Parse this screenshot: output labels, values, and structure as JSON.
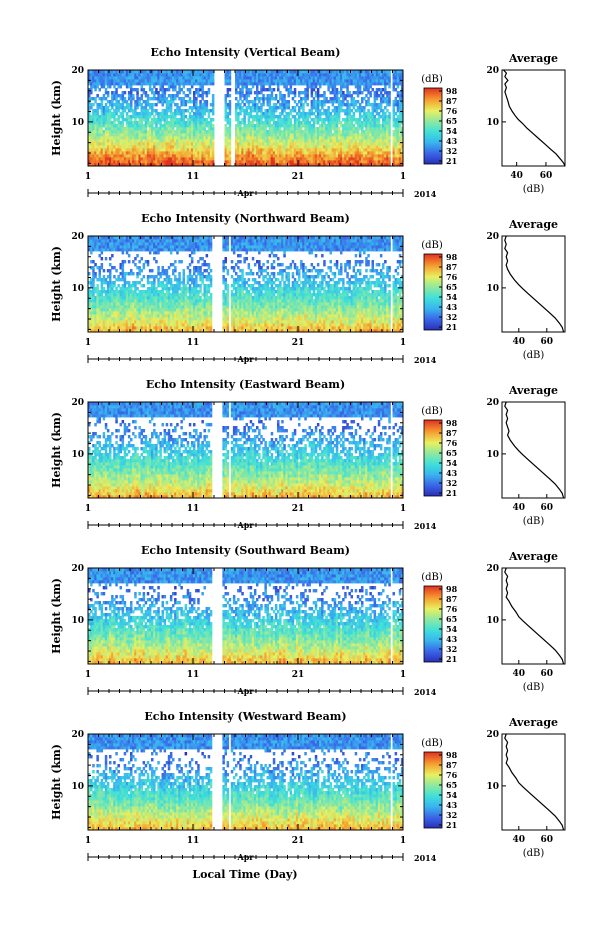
{
  "figure": {
    "bottom_xlabel": "Local Time (Day)"
  },
  "chart_data": [
    {
      "type": "heatmap",
      "title": "Echo Intensity (Vertical Beam)",
      "ylabel": "Height (km)",
      "ytick_labels": [
        "10",
        "20"
      ],
      "xtick_labels": [
        "1",
        "11",
        "21",
        "1"
      ],
      "x_ticks_days": [
        1,
        11,
        21,
        31
      ],
      "xlim_days": [
        1,
        31
      ],
      "ylim_km": [
        1.5,
        20
      ],
      "month_label": "Apr",
      "year_label": "2014",
      "colorbar": {
        "unit": "(dB)",
        "tick_labels": [
          "98",
          "87",
          "76",
          "65",
          "54",
          "43",
          "32",
          "21"
        ],
        "range": [
          21,
          98
        ]
      },
      "data_gaps_days": [
        [
          13.0,
          14.0
        ],
        [
          14.6,
          14.9
        ],
        [
          29.8,
          30.0
        ]
      ],
      "average_profile": {
        "title": "Average",
        "xlabel": "(dB)",
        "xtick_labels": [
          "40",
          "60"
        ],
        "xlim": [
          30,
          73
        ],
        "ylim": [
          1.5,
          20
        ],
        "ytick_labels": [
          "10",
          "20"
        ],
        "points": [
          [
            31,
            20
          ],
          [
            33,
            19.4
          ],
          [
            32,
            18.7
          ],
          [
            34,
            18
          ],
          [
            32,
            17.3
          ],
          [
            33,
            16.6
          ],
          [
            32,
            15.8
          ],
          [
            33,
            14.9
          ],
          [
            34,
            14
          ],
          [
            35,
            13
          ],
          [
            37,
            12
          ],
          [
            39,
            11.2
          ],
          [
            41,
            10.5
          ],
          [
            44,
            9.7
          ],
          [
            47,
            8.8
          ],
          [
            51,
            7.8
          ],
          [
            55,
            6.8
          ],
          [
            59,
            5.8
          ],
          [
            63,
            4.8
          ],
          [
            67,
            3.8
          ],
          [
            70,
            2.8
          ],
          [
            72,
            2.1
          ],
          [
            73,
            1.5
          ]
        ]
      }
    },
    {
      "type": "heatmap",
      "title": "Echo Intensity (Northward Beam)",
      "ylabel": "Height (km)",
      "ytick_labels": [
        "10",
        "20"
      ],
      "xtick_labels": [
        "1",
        "11",
        "21",
        "1"
      ],
      "x_ticks_days": [
        1,
        11,
        21,
        31
      ],
      "xlim_days": [
        1,
        31
      ],
      "ylim_km": [
        1.5,
        20
      ],
      "month_label": "Apr",
      "year_label": "2014",
      "colorbar": {
        "unit": "(dB)",
        "tick_labels": [
          "98",
          "87",
          "76",
          "65",
          "54",
          "43",
          "32",
          "21"
        ],
        "range": [
          21,
          98
        ]
      },
      "data_gaps_days": [
        [
          12.9,
          13.7
        ],
        [
          14.4,
          14.6
        ],
        [
          29.8,
          30.0
        ]
      ],
      "average_profile": {
        "title": "Average",
        "xlabel": "(dB)",
        "xtick_labels": [
          "40",
          "60"
        ],
        "xlim": [
          28,
          73
        ],
        "ylim": [
          1.5,
          20
        ],
        "ytick_labels": [
          "10",
          "20"
        ],
        "points": [
          [
            31,
            20
          ],
          [
            30,
            19.2
          ],
          [
            31,
            18.4
          ],
          [
            30,
            17.6
          ],
          [
            32,
            16.8
          ],
          [
            31,
            16
          ],
          [
            32,
            15.2
          ],
          [
            31,
            14.4
          ],
          [
            32,
            13.6
          ],
          [
            34,
            12.6
          ],
          [
            37,
            11.5
          ],
          [
            40,
            10.6
          ],
          [
            43,
            9.8
          ],
          [
            47,
            8.8
          ],
          [
            52,
            7.6
          ],
          [
            57,
            6.4
          ],
          [
            62,
            5.2
          ],
          [
            66,
            4.2
          ],
          [
            69,
            3.2
          ],
          [
            71,
            2.4
          ],
          [
            72,
            1.5
          ]
        ]
      }
    },
    {
      "type": "heatmap",
      "title": "Echo Intensity (Eastward Beam)",
      "ylabel": "Height (km)",
      "ytick_labels": [
        "10",
        "20"
      ],
      "xtick_labels": [
        "1",
        "11",
        "21",
        "1"
      ],
      "x_ticks_days": [
        1,
        11,
        21,
        31
      ],
      "xlim_days": [
        1,
        31
      ],
      "ylim_km": [
        1.5,
        20
      ],
      "month_label": "Apr",
      "year_label": "2014",
      "colorbar": {
        "unit": "(dB)",
        "tick_labels": [
          "98",
          "87",
          "76",
          "65",
          "54",
          "43",
          "32",
          "21"
        ],
        "range": [
          21,
          98
        ]
      },
      "data_gaps_days": [
        [
          12.9,
          13.7
        ],
        [
          14.4,
          14.6
        ],
        [
          29.8,
          30.0
        ]
      ],
      "average_profile": {
        "title": "Average",
        "xlabel": "(dB)",
        "xtick_labels": [
          "40",
          "60"
        ],
        "xlim": [
          28,
          73
        ],
        "ylim": [
          1.5,
          20
        ],
        "ytick_labels": [
          "10",
          "20"
        ],
        "points": [
          [
            31,
            20
          ],
          [
            30,
            19.2
          ],
          [
            32,
            18.4
          ],
          [
            31,
            17.6
          ],
          [
            32,
            16.8
          ],
          [
            31,
            16
          ],
          [
            32,
            15.2
          ],
          [
            33,
            14.4
          ],
          [
            32,
            13.6
          ],
          [
            34,
            12.6
          ],
          [
            37,
            11.5
          ],
          [
            40,
            10.6
          ],
          [
            43,
            9.8
          ],
          [
            47,
            8.8
          ],
          [
            52,
            7.6
          ],
          [
            57,
            6.4
          ],
          [
            62,
            5.2
          ],
          [
            66,
            4.2
          ],
          [
            69,
            3.2
          ],
          [
            71,
            2.4
          ],
          [
            72,
            1.5
          ]
        ]
      }
    },
    {
      "type": "heatmap",
      "title": "Echo Intensity (Southward Beam)",
      "ylabel": "Height (km)",
      "ytick_labels": [
        "10",
        "20"
      ],
      "xtick_labels": [
        "1",
        "11",
        "21",
        "1"
      ],
      "x_ticks_days": [
        1,
        11,
        21,
        31
      ],
      "xlim_days": [
        1,
        31
      ],
      "ylim_km": [
        1.5,
        20
      ],
      "month_label": "Apr",
      "year_label": "2014",
      "colorbar": {
        "unit": "(dB)",
        "tick_labels": [
          "98",
          "87",
          "76",
          "65",
          "54",
          "43",
          "32",
          "21"
        ],
        "range": [
          21,
          98
        ]
      },
      "data_gaps_days": [
        [
          12.9,
          13.7
        ],
        [
          29.8,
          30.0
        ]
      ],
      "average_profile": {
        "title": "Average",
        "xlabel": "(dB)",
        "xtick_labels": [
          "40",
          "60"
        ],
        "xlim": [
          28,
          73
        ],
        "ylim": [
          1.5,
          20
        ],
        "ytick_labels": [
          "10",
          "20"
        ],
        "points": [
          [
            31,
            20
          ],
          [
            30,
            19.2
          ],
          [
            32,
            18.4
          ],
          [
            31,
            17.6
          ],
          [
            32,
            16.8
          ],
          [
            31,
            16
          ],
          [
            32,
            15.2
          ],
          [
            31,
            14.4
          ],
          [
            33,
            13.6
          ],
          [
            35,
            12.6
          ],
          [
            38,
            11.5
          ],
          [
            40,
            10.6
          ],
          [
            43,
            9.8
          ],
          [
            47,
            8.8
          ],
          [
            52,
            7.6
          ],
          [
            57,
            6.4
          ],
          [
            62,
            5.2
          ],
          [
            66,
            4.2
          ],
          [
            69,
            3.2
          ],
          [
            71,
            2.4
          ],
          [
            72,
            1.5
          ]
        ]
      }
    },
    {
      "type": "heatmap",
      "title": "Echo Intensity (Westward Beam)",
      "ylabel": "Height (km)",
      "ytick_labels": [
        "10",
        "20"
      ],
      "xtick_labels": [
        "1",
        "11",
        "21",
        "1"
      ],
      "x_ticks_days": [
        1,
        11,
        21,
        31
      ],
      "xlim_days": [
        1,
        31
      ],
      "ylim_km": [
        1.5,
        20
      ],
      "month_label": "Apr",
      "year_label": "2014",
      "colorbar": {
        "unit": "(dB)",
        "tick_labels": [
          "98",
          "87",
          "76",
          "65",
          "54",
          "43",
          "32",
          "21"
        ],
        "range": [
          21,
          98
        ]
      },
      "data_gaps_days": [
        [
          12.9,
          13.7
        ],
        [
          14.4,
          14.6
        ],
        [
          29.8,
          30.0
        ]
      ],
      "average_profile": {
        "title": "Average",
        "xlabel": "(dB)",
        "xtick_labels": [
          "40",
          "60"
        ],
        "xlim": [
          28,
          73
        ],
        "ylim": [
          1.5,
          20
        ],
        "ytick_labels": [
          "10",
          "20"
        ],
        "points": [
          [
            31,
            20
          ],
          [
            30,
            19.2
          ],
          [
            32,
            18.4
          ],
          [
            31,
            17.6
          ],
          [
            32,
            16.8
          ],
          [
            31,
            16
          ],
          [
            32,
            15.2
          ],
          [
            31,
            14.4
          ],
          [
            33,
            13.6
          ],
          [
            35,
            12.6
          ],
          [
            38,
            11.5
          ],
          [
            40,
            10.6
          ],
          [
            43,
            9.8
          ],
          [
            47,
            8.8
          ],
          [
            52,
            7.6
          ],
          [
            57,
            6.4
          ],
          [
            62,
            5.2
          ],
          [
            66,
            4.2
          ],
          [
            69,
            3.2
          ],
          [
            71,
            2.4
          ],
          [
            72,
            1.5
          ]
        ]
      }
    }
  ]
}
